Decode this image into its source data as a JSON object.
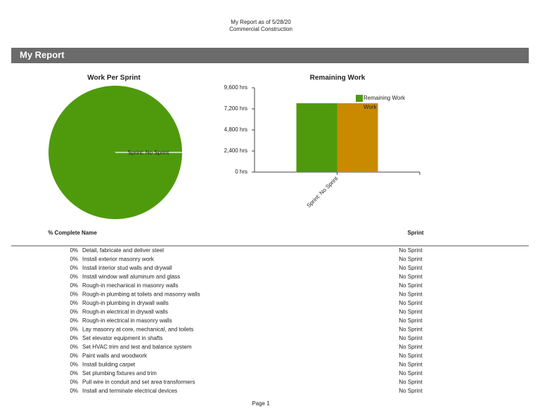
{
  "header": {
    "title": "My Report as of 5/28/20",
    "subtitle": "Commercial Construction"
  },
  "section": {
    "title": "My Report"
  },
  "chart_data": [
    {
      "type": "pie",
      "title": "Work Per Sprint",
      "categories": [
        "Sprint: No Sprint"
      ],
      "values": [
        100
      ],
      "colors": [
        "#4f9a0c"
      ]
    },
    {
      "type": "bar",
      "title": "Remaining Work",
      "categories": [
        "Sprint: No Sprint"
      ],
      "series": [
        {
          "name": "Remaining Work",
          "color": "#4f9a0c",
          "values": [
            7840
          ]
        },
        {
          "name": "Work",
          "color": "#c98a00",
          "values": [
            7840
          ]
        }
      ],
      "ylim": [
        0,
        9600
      ],
      "yticks": [
        {
          "value": 0,
          "label": "0 hrs"
        },
        {
          "value": 2400,
          "label": "2,400 hrs"
        },
        {
          "value": 4800,
          "label": "4,800 hrs"
        },
        {
          "value": 7200,
          "label": "7,200 hrs"
        },
        {
          "value": 9600,
          "label": "9,600 hrs"
        }
      ],
      "legend": "top-right"
    }
  ],
  "table": {
    "columns": [
      "% Complete",
      "Name",
      "Sprint"
    ],
    "rows": [
      [
        "0%",
        "Detail, fabricate and deliver steel",
        "No Sprint"
      ],
      [
        "0%",
        "Install exterior masonry work",
        "No Sprint"
      ],
      [
        "0%",
        "Install interior stud walls and drywall",
        "No Sprint"
      ],
      [
        "0%",
        "Install window wall aluminum and glass",
        "No Sprint"
      ],
      [
        "0%",
        "Rough-in mechanical in masonry walls",
        "No Sprint"
      ],
      [
        "0%",
        "Rough-in plumbing at toilets and masonry walls",
        "No Sprint"
      ],
      [
        "0%",
        "Rough-in plumbing in drywall walls",
        "No Sprint"
      ],
      [
        "0%",
        "Rough-in electrical in drywall walls",
        "No Sprint"
      ],
      [
        "0%",
        "Rough-in electrical in masonry walls",
        "No Sprint"
      ],
      [
        "0%",
        "Lay masonry at core, mechanical, and toilets",
        "No Sprint"
      ],
      [
        "0%",
        "Set elevator equipment in shafts",
        "No Sprint"
      ],
      [
        "0%",
        "Set HVAC trim and test and balance system",
        "No Sprint"
      ],
      [
        "0%",
        "Paint walls and woodwork",
        "No Sprint"
      ],
      [
        "0%",
        "Install building carpet",
        "No Sprint"
      ],
      [
        "0%",
        "Set plumbing fixtures and trim",
        "No Sprint"
      ],
      [
        "0%",
        "Pull wire in conduit and set area transformers",
        "No Sprint"
      ],
      [
        "0%",
        "Install and terminate electrical devices",
        "No Sprint"
      ]
    ]
  },
  "footer": {
    "page": "Page 1"
  }
}
